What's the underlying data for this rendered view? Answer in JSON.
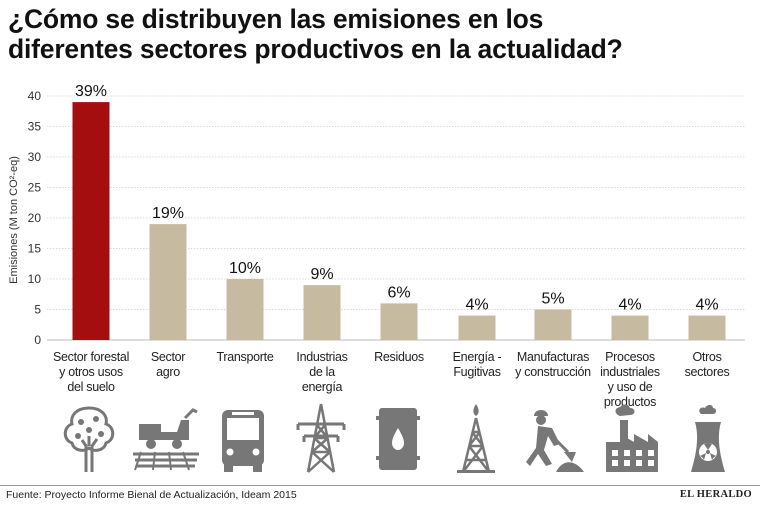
{
  "title_line1": "¿Cómo se distribuyen las emisiones en los",
  "title_line2": "diferentes sectores productivos en la actualidad?",
  "chart_data": {
    "type": "bar",
    "title": "¿Cómo se distribuyen las emisiones en los diferentes sectores productivos en la actualidad?",
    "ylabel": "Emisiones (M ton CO²-eq)",
    "xlabel": "",
    "ylim": [
      0,
      40
    ],
    "yticks": [
      0,
      5,
      10,
      15,
      20,
      25,
      30,
      35,
      40
    ],
    "grid": true,
    "categories": [
      "Sector forestal y otros usos del suelo",
      "Sector agro",
      "Transporte",
      "Industrias de la energía",
      "Residuos",
      "Energía - Fugitivas",
      "Manufacturas y construcción",
      "Procesos industriales y uso de productos",
      "Otros sectores"
    ],
    "values": [
      39,
      19,
      10,
      9,
      6,
      4,
      5,
      4,
      4
    ],
    "labels": [
      "39%",
      "19%",
      "10%",
      "9%",
      "6%",
      "4%",
      "5%",
      "4%",
      "4%"
    ],
    "highlight_color": "#a50e0e",
    "bar_color": "#c6bba0"
  },
  "category_lines": [
    [
      "Sector forestal",
      "y otros usos",
      "del suelo"
    ],
    [
      "Sector",
      "agro"
    ],
    [
      "Transporte"
    ],
    [
      "Industrias",
      "de la",
      "energía"
    ],
    [
      "Residuos"
    ],
    [
      "Energía -",
      "Fugitivas"
    ],
    [
      "Manufacturas",
      "y construcción"
    ],
    [
      "Procesos",
      "industriales",
      "y uso de",
      "productos"
    ],
    [
      "Otros",
      "sectores"
    ]
  ],
  "icons": [
    "tree-icon",
    "harvester-icon",
    "bus-icon",
    "power-tower-icon",
    "barrel-icon",
    "oil-rig-icon",
    "worker-icon",
    "factory-icon",
    "nuclear-plant-icon"
  ],
  "source": "Fuente: Proyecto Informe Bienal de Actualización, Ideam 2015",
  "brand": "EL HERALDO"
}
